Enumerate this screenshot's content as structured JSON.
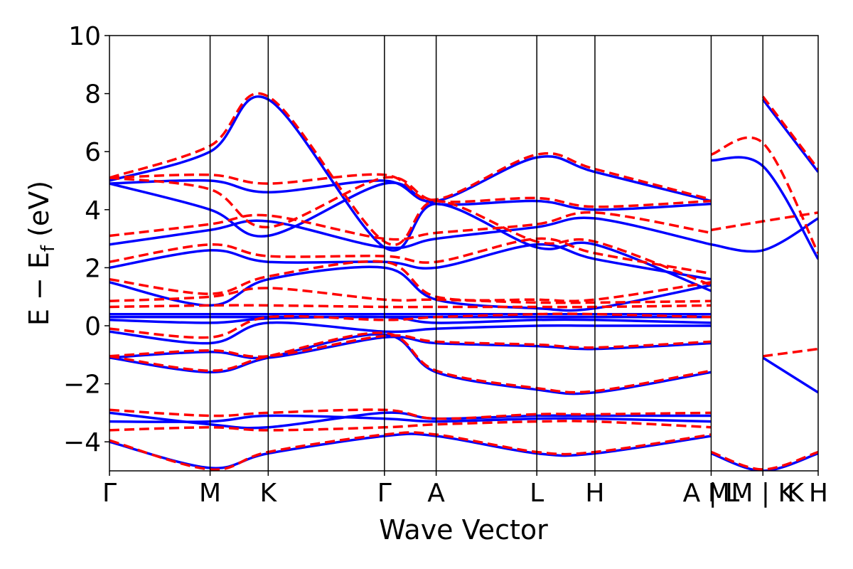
{
  "chart_data": {
    "type": "line",
    "title": "",
    "xlabel": "Wave Vector",
    "ylabel": "E − E_f (eV)",
    "ylabel_main": "E  −  E",
    "ylabel_sub": "f",
    "ylabel_unit": " (eV)",
    "ylim": [
      -5,
      10
    ],
    "yticks": [
      -4,
      -2,
      0,
      2,
      4,
      6,
      8,
      10
    ],
    "ytick_labels": [
      "−4",
      "−2",
      "0",
      "2",
      "4",
      "6",
      "8",
      "10"
    ],
    "x_range": [
      0,
      10
    ],
    "kpoints": [
      {
        "x": 0.0,
        "label": "Γ"
      },
      {
        "x": 1.42,
        "label": "M"
      },
      {
        "x": 2.24,
        "label": "K"
      },
      {
        "x": 3.88,
        "label": "Γ"
      },
      {
        "x": 4.61,
        "label": "A"
      },
      {
        "x": 6.03,
        "label": "L"
      },
      {
        "x": 6.85,
        "label": "H"
      },
      {
        "x": 8.49,
        "label": "A | L"
      },
      {
        "x": 9.22,
        "label": "M | K"
      },
      {
        "x": 10.0,
        "label": "H"
      }
    ],
    "kpoint_overlap_labels": [
      {
        "x": 8.6,
        "label": "M"
      },
      {
        "x": 10.0,
        "label": "K"
      }
    ],
    "series": [
      {
        "style": "solid",
        "color": "#0000ff",
        "bands": [
          [
            [
              0,
              -4.0
            ],
            [
              1.42,
              -4.9
            ],
            [
              2.24,
              -4.4
            ],
            [
              3.88,
              -3.8
            ],
            [
              4.61,
              -3.8
            ],
            [
              6.03,
              -4.4
            ],
            [
              6.85,
              -4.4
            ],
            [
              8.49,
              -3.8
            ]
          ],
          [
            [
              0,
              -3.3
            ],
            [
              1.42,
              -3.3
            ],
            [
              2.24,
              -3.1
            ],
            [
              3.88,
              -3.2
            ],
            [
              4.61,
              -3.3
            ],
            [
              6.03,
              -3.2
            ],
            [
              6.85,
              -3.2
            ],
            [
              8.49,
              -3.3
            ]
          ],
          [
            [
              0,
              -3.0
            ],
            [
              1.42,
              -3.4
            ],
            [
              2.24,
              -3.5
            ],
            [
              3.88,
              -3.0
            ],
            [
              4.61,
              -3.2
            ],
            [
              6.03,
              -3.1
            ],
            [
              6.85,
              -3.1
            ],
            [
              8.49,
              -3.1
            ]
          ],
          [
            [
              0,
              -1.1
            ],
            [
              1.42,
              -0.9
            ],
            [
              2.24,
              -1.1
            ],
            [
              3.88,
              -0.4
            ],
            [
              4.61,
              -0.6
            ],
            [
              6.03,
              -0.7
            ],
            [
              6.85,
              -0.8
            ],
            [
              8.49,
              -0.6
            ]
          ],
          [
            [
              0,
              -1.1
            ],
            [
              1.42,
              -1.6
            ],
            [
              2.24,
              -1.1
            ],
            [
              3.88,
              -0.3
            ],
            [
              4.61,
              -1.6
            ],
            [
              6.03,
              -2.2
            ],
            [
              6.85,
              -2.3
            ],
            [
              8.49,
              -1.6
            ]
          ],
          [
            [
              0,
              0.2
            ],
            [
              1.42,
              0.1
            ],
            [
              2.24,
              0.25
            ],
            [
              3.88,
              0.3
            ],
            [
              4.61,
              0.1
            ],
            [
              6.03,
              0.2
            ],
            [
              6.85,
              0.2
            ],
            [
              8.49,
              0.1
            ]
          ],
          [
            [
              0,
              0.3
            ],
            [
              1.42,
              0.3
            ],
            [
              2.24,
              0.3
            ],
            [
              3.88,
              0.3
            ],
            [
              4.61,
              0.3
            ],
            [
              6.03,
              0.3
            ],
            [
              6.85,
              0.3
            ],
            [
              8.49,
              0.3
            ]
          ],
          [
            [
              0,
              0.4
            ],
            [
              1.42,
              0.4
            ],
            [
              2.24,
              0.4
            ],
            [
              3.88,
              0.4
            ],
            [
              4.61,
              0.4
            ],
            [
              6.03,
              0.4
            ],
            [
              6.85,
              0.4
            ],
            [
              8.49,
              0.4
            ]
          ],
          [
            [
              0,
              -0.2
            ],
            [
              1.42,
              -0.6
            ],
            [
              2.24,
              0.1
            ],
            [
              3.88,
              -0.2
            ],
            [
              4.61,
              -0.1
            ],
            [
              6.03,
              0.0
            ],
            [
              6.85,
              0.0
            ],
            [
              8.49,
              0.0
            ]
          ],
          [
            [
              0,
              1.5
            ],
            [
              1.42,
              0.7
            ],
            [
              2.24,
              1.6
            ],
            [
              3.88,
              2.0
            ],
            [
              4.61,
              0.9
            ],
            [
              6.03,
              0.6
            ],
            [
              6.85,
              0.6
            ],
            [
              8.49,
              1.4
            ]
          ],
          [
            [
              0,
              2.0
            ],
            [
              1.42,
              2.6
            ],
            [
              2.24,
              2.2
            ],
            [
              3.88,
              2.2
            ],
            [
              4.61,
              2.0
            ],
            [
              6.03,
              2.8
            ],
            [
              6.85,
              2.3
            ],
            [
              8.49,
              1.6
            ]
          ],
          [
            [
              0,
              2.8
            ],
            [
              1.42,
              3.3
            ],
            [
              2.24,
              3.6
            ],
            [
              3.88,
              2.7
            ],
            [
              4.61,
              3.0
            ],
            [
              6.03,
              3.4
            ],
            [
              6.85,
              3.7
            ],
            [
              8.49,
              2.8
            ]
          ],
          [
            [
              0,
              4.9
            ],
            [
              1.42,
              4.0
            ],
            [
              2.24,
              3.1
            ],
            [
              3.88,
              4.9
            ],
            [
              4.61,
              4.2
            ],
            [
              6.03,
              4.3
            ],
            [
              6.85,
              4.0
            ],
            [
              8.49,
              4.2
            ]
          ],
          [
            [
              0,
              4.9
            ],
            [
              1.42,
              5.0
            ],
            [
              2.24,
              4.6
            ],
            [
              3.88,
              5.0
            ],
            [
              4.61,
              4.3
            ],
            [
              6.03,
              5.8
            ],
            [
              6.85,
              5.3
            ],
            [
              8.49,
              4.3
            ]
          ],
          [
            [
              0,
              5.0
            ],
            [
              1.42,
              6.0
            ],
            [
              2.24,
              7.8
            ],
            [
              3.88,
              2.7
            ],
            [
              4.61,
              4.2
            ],
            [
              6.03,
              2.7
            ],
            [
              6.85,
              2.8
            ],
            [
              8.49,
              1.2
            ]
          ],
          [
            [
              8.49,
              5.7
            ],
            [
              9.22,
              5.5
            ],
            [
              10.0,
              2.3
            ]
          ],
          [
            [
              8.49,
              2.8
            ],
            [
              9.22,
              2.6
            ],
            [
              10.0,
              3.7
            ]
          ],
          [
            [
              8.49,
              -4.4
            ],
            [
              9.22,
              -5.0
            ],
            [
              10.0,
              -4.4
            ]
          ],
          [
            [
              9.22,
              7.8
            ],
            [
              10.0,
              5.3
            ]
          ],
          [
            [
              9.22,
              -1.1
            ],
            [
              10.0,
              -2.3
            ]
          ]
        ]
      },
      {
        "style": "dashed",
        "color": "#ff0000",
        "bands": [
          [
            [
              0,
              -3.95
            ],
            [
              1.42,
              -4.95
            ],
            [
              2.24,
              -4.35
            ],
            [
              3.88,
              -3.75
            ],
            [
              4.61,
              -3.75
            ],
            [
              6.03,
              -4.35
            ],
            [
              6.85,
              -4.35
            ],
            [
              8.49,
              -3.75
            ]
          ],
          [
            [
              0,
              -2.9
            ],
            [
              1.42,
              -3.1
            ],
            [
              2.24,
              -3.0
            ],
            [
              3.88,
              -2.9
            ],
            [
              4.61,
              -3.2
            ],
            [
              6.03,
              -3.05
            ],
            [
              6.85,
              -3.05
            ],
            [
              8.49,
              -3.0
            ]
          ],
          [
            [
              0,
              -3.6
            ],
            [
              1.42,
              -3.5
            ],
            [
              2.24,
              -3.6
            ],
            [
              3.88,
              -3.5
            ],
            [
              4.61,
              -3.4
            ],
            [
              6.03,
              -3.3
            ],
            [
              6.85,
              -3.3
            ],
            [
              8.49,
              -3.5
            ]
          ],
          [
            [
              0,
              -1.05
            ],
            [
              1.42,
              -0.85
            ],
            [
              2.24,
              -1.05
            ],
            [
              3.88,
              -0.35
            ],
            [
              4.61,
              -0.55
            ],
            [
              6.03,
              -0.65
            ],
            [
              6.85,
              -0.75
            ],
            [
              8.49,
              -0.55
            ]
          ],
          [
            [
              0,
              -1.05
            ],
            [
              1.42,
              -1.55
            ],
            [
              2.24,
              -1.05
            ],
            [
              3.88,
              -0.25
            ],
            [
              4.61,
              -1.55
            ],
            [
              6.03,
              -2.15
            ],
            [
              6.85,
              -2.25
            ],
            [
              8.49,
              -1.55
            ]
          ],
          [
            [
              0,
              0.65
            ],
            [
              1.42,
              0.7
            ],
            [
              2.24,
              0.7
            ],
            [
              3.88,
              0.65
            ],
            [
              4.61,
              0.65
            ],
            [
              6.03,
              0.65
            ],
            [
              6.85,
              0.65
            ],
            [
              8.49,
              0.7
            ]
          ],
          [
            [
              0,
              0.85
            ],
            [
              1.42,
              1.0
            ],
            [
              2.24,
              1.3
            ],
            [
              3.88,
              0.9
            ],
            [
              4.61,
              0.9
            ],
            [
              6.03,
              0.8
            ],
            [
              6.85,
              0.8
            ],
            [
              8.49,
              0.85
            ]
          ],
          [
            [
              0,
              -0.1
            ],
            [
              1.42,
              -0.4
            ],
            [
              2.24,
              0.3
            ],
            [
              3.88,
              0.2
            ],
            [
              4.61,
              0.3
            ],
            [
              6.03,
              0.4
            ],
            [
              6.85,
              0.4
            ],
            [
              8.49,
              0.3
            ]
          ],
          [
            [
              0,
              1.6
            ],
            [
              1.42,
              1.1
            ],
            [
              2.24,
              1.7
            ],
            [
              3.88,
              2.2
            ],
            [
              4.61,
              1.0
            ],
            [
              6.03,
              0.9
            ],
            [
              6.85,
              0.9
            ],
            [
              8.49,
              1.5
            ]
          ],
          [
            [
              0,
              2.2
            ],
            [
              1.42,
              2.8
            ],
            [
              2.24,
              2.4
            ],
            [
              3.88,
              2.4
            ],
            [
              4.61,
              2.2
            ],
            [
              6.03,
              3.0
            ],
            [
              6.85,
              2.5
            ],
            [
              8.49,
              1.8
            ]
          ],
          [
            [
              0,
              3.1
            ],
            [
              1.42,
              3.5
            ],
            [
              2.24,
              3.8
            ],
            [
              3.88,
              3.0
            ],
            [
              4.61,
              3.2
            ],
            [
              6.03,
              3.5
            ],
            [
              6.85,
              3.9
            ],
            [
              8.49,
              3.2
            ]
          ],
          [
            [
              0,
              5.1
            ],
            [
              1.42,
              4.7
            ],
            [
              2.24,
              3.4
            ],
            [
              3.88,
              5.1
            ],
            [
              4.61,
              4.3
            ],
            [
              6.03,
              4.4
            ],
            [
              6.85,
              4.1
            ],
            [
              8.49,
              4.3
            ]
          ],
          [
            [
              0,
              5.1
            ],
            [
              1.42,
              5.2
            ],
            [
              2.24,
              4.9
            ],
            [
              3.88,
              5.2
            ],
            [
              4.61,
              4.35
            ],
            [
              6.03,
              5.9
            ],
            [
              6.85,
              5.4
            ],
            [
              8.49,
              4.35
            ]
          ],
          [
            [
              0,
              5.1
            ],
            [
              1.42,
              6.2
            ],
            [
              2.24,
              7.9
            ],
            [
              3.88,
              2.9
            ],
            [
              4.61,
              4.3
            ],
            [
              6.03,
              2.9
            ],
            [
              6.85,
              2.9
            ],
            [
              8.49,
              1.4
            ]
          ],
          [
            [
              8.49,
              5.9
            ],
            [
              9.22,
              6.3
            ],
            [
              10.0,
              2.5
            ]
          ],
          [
            [
              8.49,
              3.3
            ],
            [
              9.22,
              3.6
            ],
            [
              10.0,
              3.9
            ]
          ],
          [
            [
              8.49,
              -4.35
            ],
            [
              9.22,
              -4.95
            ],
            [
              10.0,
              -4.35
            ]
          ],
          [
            [
              9.22,
              7.9
            ],
            [
              10.0,
              5.4
            ]
          ],
          [
            [
              9.22,
              -1.05
            ],
            [
              10.0,
              -0.8
            ]
          ]
        ]
      }
    ],
    "grid": false,
    "legend": "none"
  }
}
